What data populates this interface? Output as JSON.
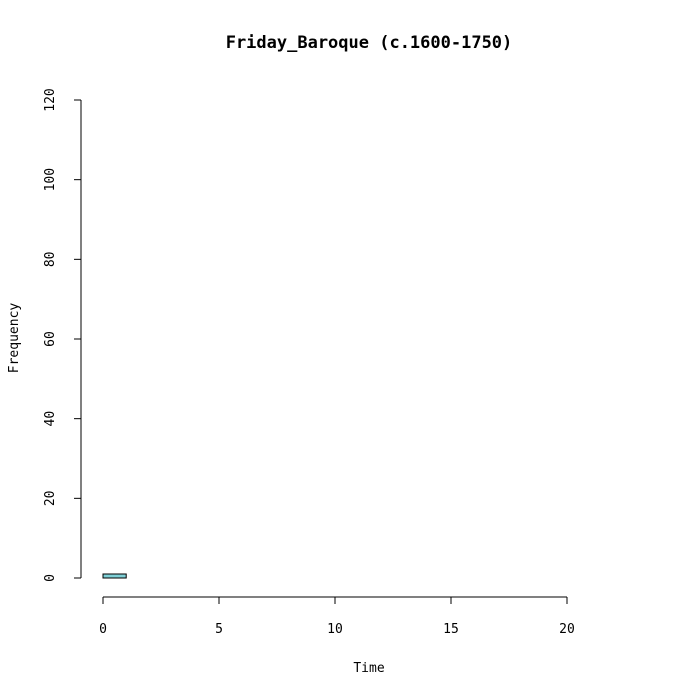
{
  "chart_data": {
    "type": "bar",
    "title": "Friday_Baroque (c.1600-1750)",
    "xlabel": "Time",
    "ylabel": "Frequency",
    "xlim": [
      0,
      24
    ],
    "ylim": [
      0,
      120
    ],
    "x_ticks": [
      0,
      5,
      10,
      15,
      20
    ],
    "y_ticks": [
      0,
      20,
      40,
      60,
      80,
      100,
      120
    ],
    "bin_width": 1,
    "bins": [
      {
        "x0": 0,
        "x1": 1,
        "count": 1
      },
      {
        "x0": 1,
        "x1": 2,
        "count": 0
      },
      {
        "x0": 2,
        "x1": 3,
        "count": 0
      },
      {
        "x0": 3,
        "x1": 4,
        "count": 0
      },
      {
        "x0": 4,
        "x1": 5,
        "count": 0
      },
      {
        "x0": 5,
        "x1": 6,
        "count": 0
      },
      {
        "x0": 6,
        "x1": 7,
        "count": 0
      },
      {
        "x0": 7,
        "x1": 8,
        "count": 0
      },
      {
        "x0": 8,
        "x1": 9,
        "count": 0
      },
      {
        "x0": 9,
        "x1": 10,
        "count": 0
      },
      {
        "x0": 10,
        "x1": 11,
        "count": 0
      },
      {
        "x0": 11,
        "x1": 12,
        "count": 0
      },
      {
        "x0": 12,
        "x1": 13,
        "count": 0
      },
      {
        "x0": 13,
        "x1": 14,
        "count": 0
      },
      {
        "x0": 14,
        "x1": 15,
        "count": 0
      },
      {
        "x0": 15,
        "x1": 16,
        "count": 0
      },
      {
        "x0": 16,
        "x1": 17,
        "count": 0
      },
      {
        "x0": 17,
        "x1": 18,
        "count": 0
      },
      {
        "x0": 18,
        "x1": 19,
        "count": 0
      },
      {
        "x0": 19,
        "x1": 20,
        "count": 0
      },
      {
        "x0": 20,
        "x1": 21,
        "count": 0
      },
      {
        "x0": 21,
        "x1": 22,
        "count": 0
      },
      {
        "x0": 22,
        "x1": 23,
        "count": 0
      },
      {
        "x0": 23,
        "x1": 24,
        "count": 0
      }
    ],
    "bar_color": "#7ecfd6",
    "grid": false,
    "legend": "none"
  }
}
